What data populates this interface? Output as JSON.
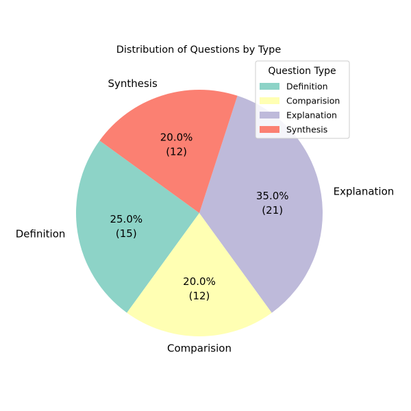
{
  "chart_data": {
    "type": "pie",
    "title": "Distribution of Questions by Type",
    "categories": [
      "Definition",
      "Comparision",
      "Explanation",
      "Synthesis"
    ],
    "values": [
      15,
      12,
      21,
      12
    ],
    "percent_labels": [
      "25.0%",
      "20.0%",
      "35.0%",
      "20.0%"
    ],
    "count_labels": [
      "(15)",
      "(12)",
      "(21)",
      "(12)"
    ],
    "colors": [
      "#8dd3c7",
      "#ffffb3",
      "#bebada",
      "#fb8072"
    ],
    "start_angle_deg": 144,
    "direction": "counterclockwise",
    "legend": {
      "title": "Question Type",
      "placement": "top-right",
      "entries": [
        "Definition",
        "Comparision",
        "Explanation",
        "Synthesis"
      ]
    }
  }
}
